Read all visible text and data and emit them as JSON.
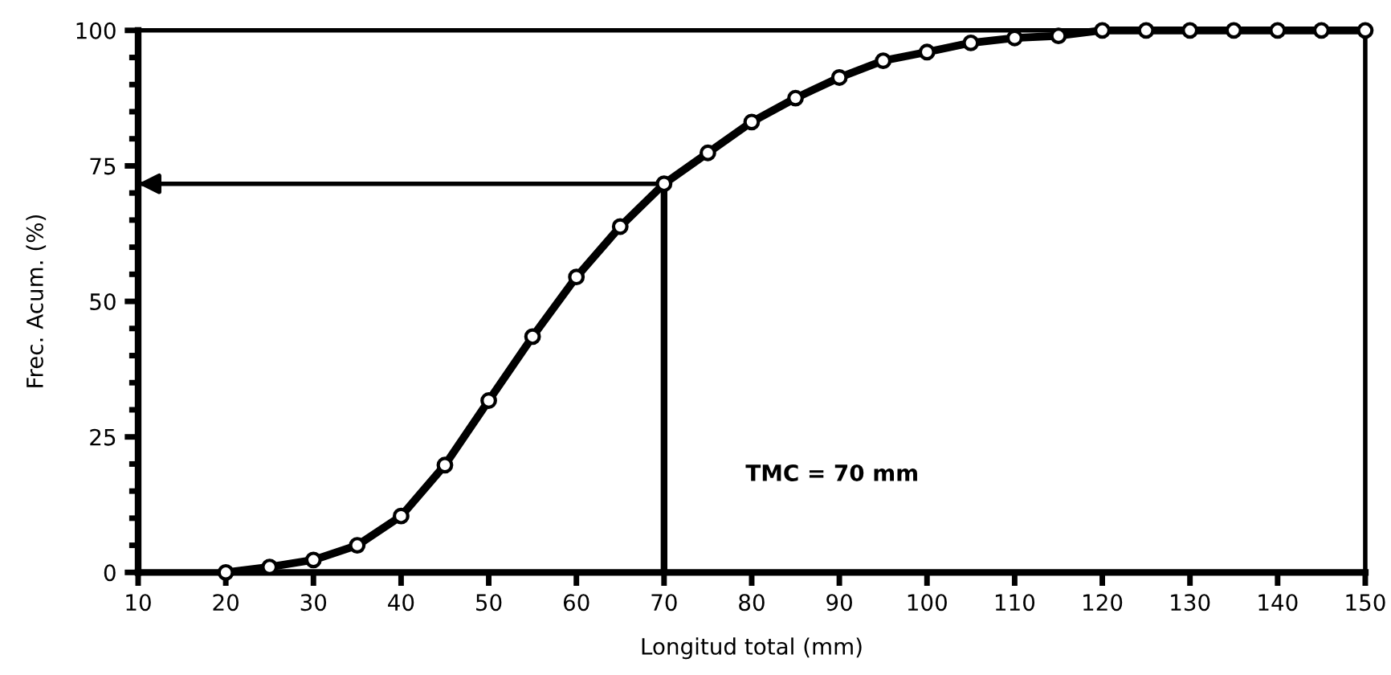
{
  "chart_data": {
    "type": "line",
    "xlabel": "Longitud total (mm)",
    "ylabel": "Frec. Acum. (%)",
    "x": [
      20,
      25,
      30,
      35,
      40,
      45,
      50,
      55,
      60,
      65,
      70,
      75,
      80,
      85,
      90,
      95,
      100,
      105,
      110,
      115,
      120,
      125,
      130,
      135,
      140,
      145,
      150
    ],
    "series": [
      {
        "color": "#000000",
        "values": [
          0,
          1,
          2.3,
          5,
          10.4,
          19.8,
          31.7,
          43.5,
          54.5,
          63.8,
          71.7,
          77.4,
          83.1,
          87.5,
          91.3,
          94.4,
          96,
          97.7,
          98.6,
          99,
          100,
          100,
          100,
          100,
          100,
          100,
          100
        ]
      }
    ],
    "xlim": [
      10,
      150
    ],
    "xticks": [
      10,
      20,
      30,
      40,
      50,
      60,
      70,
      80,
      90,
      100,
      110,
      120,
      130,
      140,
      150
    ],
    "ylim": [
      0,
      100
    ],
    "yticks": [
      0,
      25,
      50,
      75,
      100
    ],
    "marker": "circle",
    "line_style": "solid",
    "grid": false,
    "ref_lines": [
      {
        "axis": "x",
        "value": 70,
        "color": "#000000"
      },
      {
        "axis": "y",
        "value": 71.7,
        "color": "#000000"
      }
    ],
    "annotations": [
      "TMC = 70 mm"
    ]
  }
}
